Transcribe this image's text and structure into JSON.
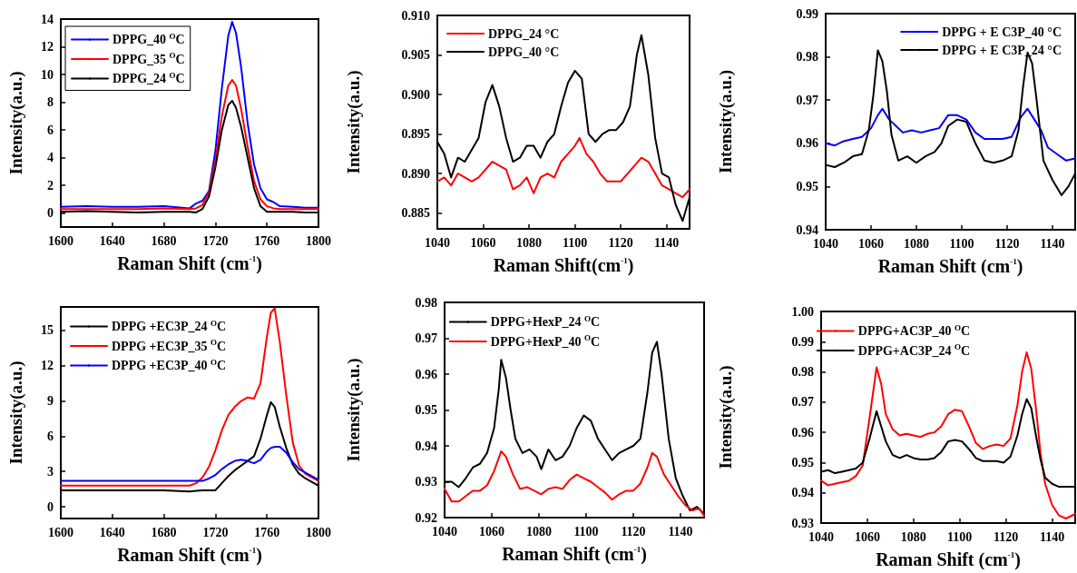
{
  "chart_data": [
    {
      "type": "line",
      "xlabel": "Raman Shift (cm$^{-1}$)",
      "ylabel": "Intensity(a.u.)",
      "xlim": [
        1600,
        1800
      ],
      "xticks": [
        1600,
        1640,
        1680,
        1720,
        1760,
        1800
      ],
      "ylim": [
        -1,
        14
      ],
      "yticks": [
        0,
        2,
        4,
        6,
        8,
        10,
        12,
        14
      ],
      "grid": false,
      "legend": "top left",
      "marker": "none",
      "line_style": "solid",
      "x": [
        1600,
        1620,
        1640,
        1660,
        1680,
        1700,
        1705,
        1710,
        1715,
        1720,
        1725,
        1730,
        1733,
        1736,
        1740,
        1745,
        1750,
        1755,
        1760,
        1765,
        1770,
        1780,
        1790,
        1800
      ],
      "series": [
        {
          "name": "DPPG_40 $^{O}$C",
          "color": "#0000ff",
          "values": [
            0.45,
            0.5,
            0.45,
            0.45,
            0.5,
            0.35,
            0.7,
            0.9,
            1.6,
            4.5,
            9,
            12.8,
            13.8,
            13,
            10.5,
            6.5,
            3.5,
            1.8,
            1,
            0.8,
            0.5,
            0.45,
            0.4,
            0.4
          ]
        },
        {
          "name": "DPPG_35 $^{O}$C",
          "color": "#ff0000",
          "values": [
            0.3,
            0.3,
            0.3,
            0.3,
            0.35,
            0.3,
            0.35,
            0.6,
            1.5,
            3.8,
            7,
            9.2,
            9.6,
            9.2,
            7.5,
            4.8,
            2.3,
            1,
            0.5,
            0.35,
            0.3,
            0.3,
            0.3,
            0.3
          ]
        },
        {
          "name": "DPPG_24 $^{O}$C",
          "color": "#000000",
          "values": [
            0.1,
            0.15,
            0.1,
            0.05,
            0.1,
            0.1,
            0.05,
            0.3,
            1.2,
            3.3,
            6,
            7.8,
            8.1,
            7.6,
            6.2,
            4,
            1.8,
            0.5,
            0.1,
            0.1,
            0.1,
            0.1,
            0.05,
            0.05
          ]
        }
      ]
    },
    {
      "type": "line",
      "xlabel": "Raman Shift(cm$^{-1}$)",
      "ylabel": "Intensity(a.u.)",
      "xlim": [
        1040,
        1150
      ],
      "xticks": [
        1040,
        1060,
        1080,
        1100,
        1120,
        1140
      ],
      "ylim": [
        0.883,
        0.91
      ],
      "yticks": [
        {
          "value": 0.885,
          "label": "0.885"
        },
        {
          "value": 0.89,
          "label": "0.890"
        },
        {
          "value": 0.895,
          "label": "0.895"
        },
        {
          "value": 0.9,
          "label": "0.900"
        },
        {
          "value": 0.905,
          "label": "0.905"
        },
        {
          "value": 0.91,
          "label": "0.910"
        }
      ],
      "grid": false,
      "legend": "top left",
      "marker": "none",
      "line_style": "solid",
      "series": [
        {
          "name": "DPPG_24 °C",
          "color": "#ff0000",
          "x": [
            1040,
            1043,
            1046,
            1049,
            1052,
            1055,
            1058,
            1061,
            1064,
            1067,
            1070,
            1073,
            1076,
            1079,
            1082,
            1085,
            1088,
            1091,
            1094,
            1097,
            1100,
            1102,
            1105,
            1108,
            1111,
            1114,
            1117,
            1120,
            1123,
            1126,
            1129,
            1132,
            1135,
            1138,
            1141,
            1144,
            1147,
            1150
          ],
          "values": [
            0.889,
            0.8895,
            0.8885,
            0.89,
            0.8895,
            0.889,
            0.8895,
            0.8905,
            0.8915,
            0.891,
            0.8905,
            0.888,
            0.8885,
            0.8895,
            0.8875,
            0.8895,
            0.89,
            0.8895,
            0.8915,
            0.8925,
            0.8935,
            0.8945,
            0.8925,
            0.8915,
            0.89,
            0.889,
            0.889,
            0.889,
            0.89,
            0.891,
            0.892,
            0.8915,
            0.89,
            0.8885,
            0.888,
            0.8875,
            0.887,
            0.888
          ]
        },
        {
          "name": "DPPG_40 °C",
          "color": "#000000",
          "x": [
            1040,
            1043,
            1046,
            1049,
            1052,
            1055,
            1058,
            1061,
            1064,
            1067,
            1070,
            1073,
            1076,
            1079,
            1082,
            1085,
            1088,
            1091,
            1094,
            1097,
            1100,
            1103,
            1106,
            1109,
            1112,
            1115,
            1118,
            1121,
            1124,
            1127,
            1129,
            1132,
            1135,
            1138,
            1141,
            1144,
            1147,
            1150
          ],
          "values": [
            0.894,
            0.8925,
            0.8895,
            0.892,
            0.8915,
            0.893,
            0.8945,
            0.899,
            0.9012,
            0.8985,
            0.8945,
            0.8915,
            0.892,
            0.8935,
            0.8935,
            0.892,
            0.894,
            0.895,
            0.8985,
            0.9015,
            0.903,
            0.902,
            0.895,
            0.894,
            0.895,
            0.8955,
            0.8955,
            0.8965,
            0.8985,
            0.905,
            0.9075,
            0.9025,
            0.8945,
            0.89,
            0.8895,
            0.886,
            0.884,
            0.887
          ]
        }
      ]
    },
    {
      "type": "line",
      "xlabel": "Raman Shift (cm$^{-1}$)",
      "ylabel": "Intensity(a.u.)",
      "xlim": [
        1040,
        1150
      ],
      "xticks": [
        1040,
        1060,
        1080,
        1100,
        1120,
        1140
      ],
      "ylim": [
        0.94,
        0.99
      ],
      "yticks": [
        0.94,
        0.95,
        0.96,
        0.97,
        0.98,
        0.99
      ],
      "grid": false,
      "legend": "top right",
      "marker": "none",
      "line_style": "solid",
      "series": [
        {
          "name": "DPPG + E C3P_40 °C",
          "color": "#0000ff",
          "x": [
            1040,
            1044,
            1048,
            1052,
            1056,
            1060,
            1063,
            1065,
            1068,
            1071,
            1074,
            1078,
            1082,
            1086,
            1090,
            1094,
            1098,
            1102,
            1106,
            1110,
            1114,
            1118,
            1122,
            1126,
            1129,
            1132,
            1135,
            1138,
            1142,
            1146,
            1150
          ],
          "values": [
            0.96,
            0.9595,
            0.9605,
            0.961,
            0.9615,
            0.9635,
            0.9665,
            0.968,
            0.9655,
            0.964,
            0.9625,
            0.963,
            0.9625,
            0.963,
            0.9635,
            0.9665,
            0.9665,
            0.9655,
            0.9625,
            0.961,
            0.961,
            0.961,
            0.9615,
            0.966,
            0.968,
            0.9655,
            0.963,
            0.959,
            0.9575,
            0.956,
            0.9565
          ]
        },
        {
          "name": "DPPG + E C3P_24 °C",
          "color": "#000000",
          "x": [
            1040,
            1044,
            1048,
            1052,
            1056,
            1059,
            1061,
            1063,
            1065,
            1067,
            1069,
            1072,
            1076,
            1080,
            1084,
            1088,
            1091,
            1094,
            1098,
            1102,
            1106,
            1110,
            1114,
            1118,
            1122,
            1125,
            1127,
            1129,
            1131,
            1133,
            1136,
            1140,
            1144,
            1147,
            1150
          ],
          "values": [
            0.955,
            0.9545,
            0.9555,
            0.957,
            0.9575,
            0.963,
            0.971,
            0.9815,
            0.979,
            0.972,
            0.962,
            0.956,
            0.957,
            0.9555,
            0.957,
            0.958,
            0.96,
            0.964,
            0.9655,
            0.965,
            0.96,
            0.956,
            0.9555,
            0.956,
            0.957,
            0.963,
            0.973,
            0.981,
            0.9785,
            0.97,
            0.956,
            0.9515,
            0.948,
            0.95,
            0.953
          ]
        }
      ]
    },
    {
      "type": "line",
      "xlabel": "Raman Shift (cm$^{-1}$)",
      "ylabel": "Intensity(a.u.)",
      "xlim": [
        1600,
        1800
      ],
      "xticks": [
        1600,
        1640,
        1680,
        1720,
        1760,
        1800
      ],
      "ylim": [
        -1,
        17
      ],
      "yticks": [
        0,
        3,
        6,
        9,
        12,
        15
      ],
      "grid": false,
      "legend": "top left",
      "marker": "none",
      "line_style": "solid",
      "x": [
        1600,
        1620,
        1640,
        1660,
        1680,
        1700,
        1705,
        1710,
        1715,
        1720,
        1725,
        1730,
        1735,
        1740,
        1745,
        1750,
        1755,
        1760,
        1763,
        1766,
        1770,
        1775,
        1780,
        1785,
        1790,
        1800
      ],
      "series": [
        {
          "name": "DPPG +EC3P_24 $^{O}$C",
          "color": "#000000",
          "values": [
            1.4,
            1.4,
            1.4,
            1.4,
            1.4,
            1.3,
            1.35,
            1.4,
            1.4,
            1.4,
            2,
            2.6,
            3.1,
            3.5,
            3.9,
            4.3,
            5.8,
            7.8,
            8.9,
            8.5,
            6.8,
            5,
            3.6,
            2.8,
            2.4,
            1.8
          ]
        },
        {
          "name": "DPPG +EC3P_35 $^{O}$C",
          "color": "#ff0000",
          "values": [
            1.8,
            1.8,
            1.8,
            1.8,
            1.8,
            1.8,
            2,
            2.5,
            3.4,
            4.8,
            6.5,
            7.8,
            8.5,
            9,
            9.3,
            9.2,
            10.5,
            14.5,
            16.5,
            16.9,
            14,
            9.5,
            5.5,
            3.5,
            2.8,
            2.2
          ]
        },
        {
          "name": "DPPG +EC3P_40 $^{O}$C",
          "color": "#0000ff",
          "values": [
            2.2,
            2.2,
            2.2,
            2.2,
            2.2,
            2.2,
            2.2,
            2.2,
            2.4,
            2.7,
            3.2,
            3.6,
            3.9,
            4,
            3.9,
            3.7,
            4,
            4.7,
            5,
            5.1,
            5.1,
            4.6,
            3.8,
            3.2,
            2.9,
            2.3
          ]
        }
      ]
    },
    {
      "type": "line",
      "xlabel": "Raman Shift (cm$^{-1}$)",
      "ylabel": "Intensity(a.u.)",
      "xlim": [
        1040,
        1150
      ],
      "xticks": [
        1040,
        1060,
        1080,
        1100,
        1120,
        1140
      ],
      "ylim": [
        0.92,
        0.98
      ],
      "yticks": [
        0.92,
        0.93,
        0.94,
        0.95,
        0.96,
        0.97,
        0.98
      ],
      "grid": false,
      "legend": "top",
      "marker": "none",
      "line_style": "solid",
      "series": [
        {
          "name": "DPPG+HexP_24 $^{O}$C",
          "color": "#000000",
          "x": [
            1040,
            1043,
            1046,
            1049,
            1052,
            1055,
            1058,
            1061,
            1063,
            1064,
            1066,
            1068,
            1070,
            1073,
            1076,
            1079,
            1081,
            1084,
            1087,
            1090,
            1093,
            1096,
            1099,
            1102,
            1105,
            1108,
            1111,
            1114,
            1117,
            1120,
            1123,
            1126,
            1128,
            1130,
            1132,
            1135,
            1138,
            1141,
            1144,
            1147,
            1150
          ],
          "values": [
            0.93,
            0.93,
            0.9285,
            0.931,
            0.934,
            0.935,
            0.938,
            0.945,
            0.956,
            0.964,
            0.959,
            0.95,
            0.942,
            0.938,
            0.939,
            0.937,
            0.9335,
            0.939,
            0.936,
            0.937,
            0.94,
            0.945,
            0.9485,
            0.947,
            0.942,
            0.939,
            0.936,
            0.938,
            0.939,
            0.94,
            0.942,
            0.955,
            0.966,
            0.969,
            0.96,
            0.942,
            0.931,
            0.926,
            0.922,
            0.923,
            0.921
          ]
        },
        {
          "name": "DPPG+HexP_40 $^{O}$C",
          "color": "#ff0000",
          "x": [
            1040,
            1043,
            1046,
            1049,
            1052,
            1055,
            1058,
            1061,
            1064,
            1066,
            1069,
            1072,
            1075,
            1078,
            1081,
            1084,
            1087,
            1090,
            1093,
            1096,
            1099,
            1102,
            1105,
            1108,
            1111,
            1114,
            1117,
            1120,
            1123,
            1126,
            1128,
            1130,
            1133,
            1136,
            1139,
            1142,
            1145,
            1148,
            1150
          ],
          "values": [
            0.928,
            0.9245,
            0.9245,
            0.926,
            0.9275,
            0.9275,
            0.929,
            0.933,
            0.9385,
            0.937,
            0.932,
            0.928,
            0.9285,
            0.9275,
            0.9265,
            0.928,
            0.9285,
            0.928,
            0.9305,
            0.932,
            0.931,
            0.93,
            0.9285,
            0.927,
            0.925,
            0.9265,
            0.9275,
            0.9275,
            0.9295,
            0.934,
            0.938,
            0.937,
            0.932,
            0.929,
            0.926,
            0.9235,
            0.922,
            0.9225,
            0.9205
          ]
        }
      ]
    },
    {
      "type": "line",
      "xlabel": "Raman Shift (cm$^{-1}$)",
      "ylabel": "Intensity(a.u.)",
      "xlim": [
        1040,
        1150
      ],
      "xticks": [
        1040,
        1060,
        1080,
        1100,
        1120,
        1140
      ],
      "ylim": [
        0.93,
        1
      ],
      "yticks": [
        0.93,
        0.94,
        0.95,
        0.96,
        0.97,
        0.98,
        0.99,
        {
          "value": 1,
          "label": "1.00"
        }
      ],
      "grid": false,
      "legend": "top",
      "marker": "none",
      "line_style": "solid",
      "series": [
        {
          "name": "DPPG+AC3P_40 $^{O}$C",
          "color": "#ff0000",
          "x": [
            1040,
            1043,
            1046,
            1049,
            1052,
            1055,
            1058,
            1061,
            1064,
            1066,
            1068,
            1071,
            1074,
            1077,
            1080,
            1083,
            1086,
            1089,
            1092,
            1095,
            1098,
            1101,
            1104,
            1107,
            1110,
            1113,
            1116,
            1119,
            1122,
            1125,
            1127,
            1129,
            1131,
            1133,
            1135,
            1137,
            1140,
            1143,
            1146,
            1150
          ],
          "values": [
            0.944,
            0.9425,
            0.943,
            0.9435,
            0.944,
            0.9455,
            0.949,
            0.965,
            0.9815,
            0.976,
            0.966,
            0.961,
            0.959,
            0.9595,
            0.959,
            0.9585,
            0.9595,
            0.96,
            0.962,
            0.966,
            0.9675,
            0.967,
            0.962,
            0.9565,
            0.9545,
            0.9555,
            0.956,
            0.9555,
            0.958,
            0.969,
            0.98,
            0.9865,
            0.981,
            0.968,
            0.953,
            0.943,
            0.936,
            0.9325,
            0.9315,
            0.933
          ]
        },
        {
          "name": "DPPG+AC3P_24 $^{O}$C",
          "color": "#000000",
          "x": [
            1040,
            1043,
            1046,
            1049,
            1052,
            1055,
            1058,
            1061,
            1064,
            1066,
            1068,
            1071,
            1074,
            1077,
            1080,
            1083,
            1086,
            1089,
            1092,
            1095,
            1098,
            1101,
            1104,
            1107,
            1110,
            1113,
            1116,
            1119,
            1122,
            1125,
            1127,
            1129,
            1131,
            1133,
            1135,
            1137,
            1140,
            1143,
            1146,
            1150
          ],
          "values": [
            0.947,
            0.9475,
            0.9465,
            0.947,
            0.9475,
            0.948,
            0.95,
            0.958,
            0.967,
            0.962,
            0.957,
            0.9525,
            0.9515,
            0.9525,
            0.9515,
            0.951,
            0.951,
            0.9515,
            0.9535,
            0.957,
            0.9575,
            0.957,
            0.9545,
            0.9515,
            0.9505,
            0.9505,
            0.9505,
            0.95,
            0.952,
            0.959,
            0.966,
            0.971,
            0.968,
            0.959,
            0.951,
            0.945,
            0.943,
            0.942,
            0.942,
            0.942
          ]
        }
      ]
    }
  ]
}
